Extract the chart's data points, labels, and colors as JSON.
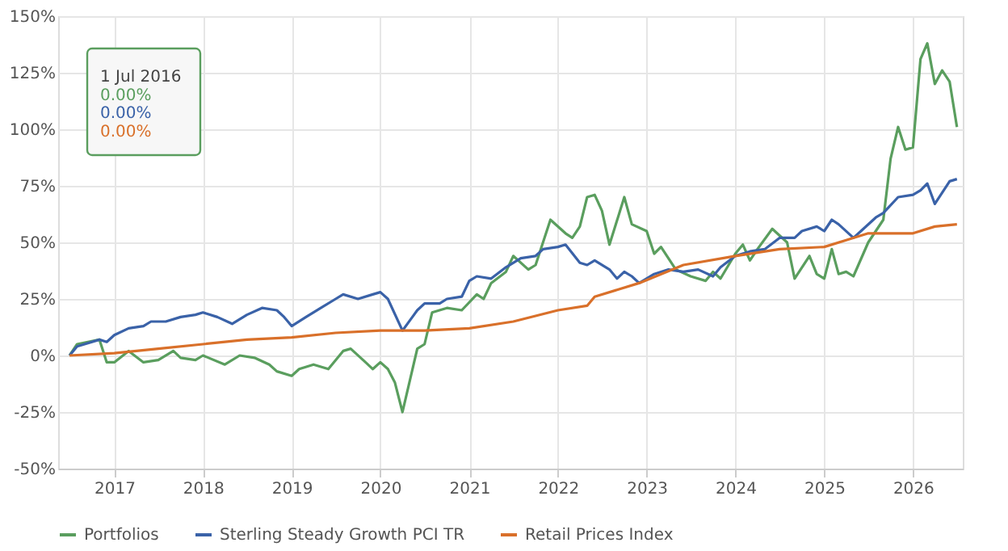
{
  "chart_data": {
    "type": "line",
    "xlim": [
      "2016-05-15",
      "2026-07-25"
    ],
    "xticks": [
      {
        "value": "2017-01-01",
        "label": "2017"
      },
      {
        "value": "2018-01-01",
        "label": "2018"
      },
      {
        "value": "2019-01-01",
        "label": "2019"
      },
      {
        "value": "2020-01-01",
        "label": "2020"
      },
      {
        "value": "2021-01-01",
        "label": "2021"
      },
      {
        "value": "2022-01-01",
        "label": "2022"
      },
      {
        "value": "2023-01-01",
        "label": "2023"
      },
      {
        "value": "2024-01-01",
        "label": "2024"
      },
      {
        "value": "2025-01-01",
        "label": "2025"
      },
      {
        "value": "2026-01-01",
        "label": "2026"
      }
    ],
    "ylim": [
      -50,
      150
    ],
    "yticks": [
      {
        "value": -50,
        "label": "-50%"
      },
      {
        "value": -25,
        "label": "-25%"
      },
      {
        "value": 0,
        "label": "0%"
      },
      {
        "value": 25,
        "label": "25%"
      },
      {
        "value": 50,
        "label": "50%"
      },
      {
        "value": 75,
        "label": "75%"
      },
      {
        "value": 100,
        "label": "100%"
      },
      {
        "value": 125,
        "label": "125%"
      },
      {
        "value": 150,
        "label": "150%"
      }
    ],
    "grid": true,
    "legend": "bottom",
    "line_style": "solid",
    "marker": "none",
    "annotations": [
      "1 Jul 2016",
      "0.00%",
      "0.00%",
      "0.00%"
    ],
    "series": [
      {
        "name": "Portfolios",
        "color": "#5a9e5e",
        "x": [
          "2016-07",
          "2016-08",
          "2016-11",
          "2016-12",
          "2017-01",
          "2017-03",
          "2017-05",
          "2017-07",
          "2017-09",
          "2017-10",
          "2017-12",
          "2018-01",
          "2018-04",
          "2018-06",
          "2018-08",
          "2018-10",
          "2018-11",
          "2019-01",
          "2019-02",
          "2019-04",
          "2019-06",
          "2019-08",
          "2019-09",
          "2019-11",
          "2019-12",
          "2020-01",
          "2020-02",
          "2020-03",
          "2020-04",
          "2020-06",
          "2020-07",
          "2020-08",
          "2020-10",
          "2020-12",
          "2021-02",
          "2021-03",
          "2021-04",
          "2021-06",
          "2021-07",
          "2021-09",
          "2021-10",
          "2021-12",
          "2022-02",
          "2022-03",
          "2022-04",
          "2022-05",
          "2022-06",
          "2022-07",
          "2022-08",
          "2022-10",
          "2022-11",
          "2023-01",
          "2023-02",
          "2023-03",
          "2023-05",
          "2023-07",
          "2023-09",
          "2023-10",
          "2023-11",
          "2024-01",
          "2024-02",
          "2024-03",
          "2024-04",
          "2024-06",
          "2024-08",
          "2024-09",
          "2024-11",
          "2024-12",
          "2025-01",
          "2025-02",
          "2025-03",
          "2025-04",
          "2025-05",
          "2025-07",
          "2025-09",
          "2025-10",
          "2025-11",
          "2025-12",
          "2026-01",
          "2026-02",
          "2026-03",
          "2026-04",
          "2026-05",
          "2026-06",
          "2026-07"
        ],
        "values": [
          0,
          5,
          7,
          -3,
          -3,
          2,
          -3,
          -2,
          2,
          -1,
          -2,
          0,
          -4,
          0,
          -1,
          -4,
          -7,
          -9,
          -6,
          -4,
          -6,
          2,
          3,
          -3,
          -6,
          -3,
          -6,
          -12,
          -25,
          3,
          5,
          19,
          21,
          20,
          27,
          25,
          32,
          37,
          44,
          38,
          40,
          60,
          54,
          52,
          57,
          70,
          71,
          64,
          49,
          70,
          58,
          55,
          45,
          48,
          38,
          35,
          33,
          37,
          34,
          45,
          49,
          42,
          47,
          56,
          50,
          34,
          44,
          36,
          34,
          47,
          36,
          37,
          35,
          50,
          60,
          87,
          101,
          91,
          92,
          131,
          138,
          120,
          126,
          121,
          101
        ]
      },
      {
        "name": "Sterling Steady Growth PCI TR",
        "color": "#3a62a8",
        "x": [
          "2016-07",
          "2016-08",
          "2016-11",
          "2016-12",
          "2017-01",
          "2017-03",
          "2017-05",
          "2017-06",
          "2017-08",
          "2017-10",
          "2017-12",
          "2018-01",
          "2018-03",
          "2018-05",
          "2018-07",
          "2018-09",
          "2018-11",
          "2018-12",
          "2019-01",
          "2019-03",
          "2019-05",
          "2019-07",
          "2019-08",
          "2019-10",
          "2019-12",
          "2020-01",
          "2020-02",
          "2020-04",
          "2020-06",
          "2020-07",
          "2020-09",
          "2020-10",
          "2020-12",
          "2021-01",
          "2021-02",
          "2021-04",
          "2021-06",
          "2021-08",
          "2021-10",
          "2021-11",
          "2022-01",
          "2022-02",
          "2022-04",
          "2022-05",
          "2022-06",
          "2022-08",
          "2022-09",
          "2022-10",
          "2022-11",
          "2022-12",
          "2023-02",
          "2023-04",
          "2023-06",
          "2023-08",
          "2023-10",
          "2023-11",
          "2024-01",
          "2024-03",
          "2024-05",
          "2024-07",
          "2024-09",
          "2024-10",
          "2024-12",
          "2025-01",
          "2025-02",
          "2025-03",
          "2025-05",
          "2025-06",
          "2025-08",
          "2025-09",
          "2025-11",
          "2026-01",
          "2026-02",
          "2026-03",
          "2026-04",
          "2026-06",
          "2026-07"
        ],
        "values": [
          0,
          4,
          7,
          6,
          9,
          12,
          13,
          15,
          15,
          17,
          18,
          19,
          17,
          14,
          18,
          21,
          20,
          17,
          13,
          17,
          21,
          25,
          27,
          25,
          27,
          28,
          25,
          11,
          20,
          23,
          23,
          25,
          26,
          33,
          35,
          34,
          39,
          43,
          44,
          47,
          48,
          49,
          41,
          40,
          42,
          38,
          34,
          37,
          35,
          32,
          36,
          38,
          37,
          38,
          35,
          39,
          44,
          46,
          47,
          52,
          52,
          55,
          57,
          55,
          60,
          58,
          52,
          55,
          61,
          63,
          70,
          71,
          73,
          76,
          67,
          77,
          78
        ]
      },
      {
        "name": "Retail Prices Index",
        "color": "#d9702a",
        "x": [
          "2016-07",
          "2017-01",
          "2017-07",
          "2018-01",
          "2018-07",
          "2019-01",
          "2019-07",
          "2020-01",
          "2020-07",
          "2021-01",
          "2021-07",
          "2022-01",
          "2022-05",
          "2022-06",
          "2022-12",
          "2023-06",
          "2024-01",
          "2024-07",
          "2025-01",
          "2025-04",
          "2025-07",
          "2026-01",
          "2026-04",
          "2026-07"
        ],
        "values": [
          0,
          1,
          3,
          5,
          7,
          8,
          10,
          11,
          11,
          12,
          15,
          20,
          22,
          26,
          32,
          40,
          44,
          47,
          48,
          51,
          54,
          54,
          57,
          58
        ]
      }
    ]
  }
}
